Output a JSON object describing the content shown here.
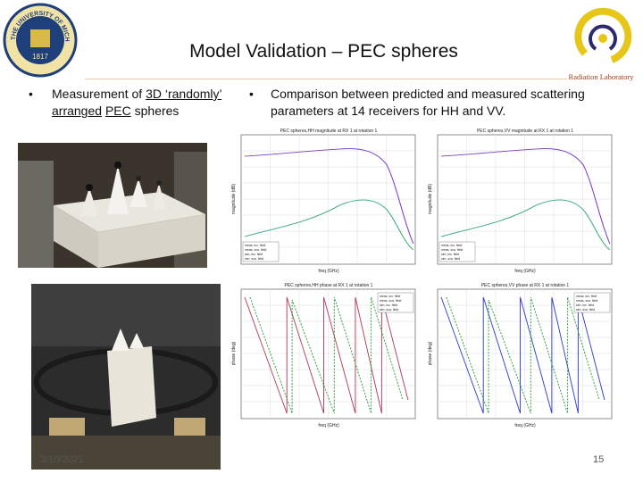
{
  "header": {
    "title": "Model Validation – PEC spheres",
    "logo_left": {
      "text": "THE UNIVERSITY OF MICHIGAN",
      "year": "1817"
    },
    "logo_right": "Radiation Laboratory"
  },
  "bullets": [
    {
      "segments": [
        {
          "text": "Measurement of "
        },
        {
          "text": "3D ‘randomly’",
          "underline": true
        },
        {
          "text": " "
        },
        {
          "text": "arranged",
          "underline": true
        },
        {
          "text": " "
        },
        {
          "text": "PEC",
          "underline": true
        },
        {
          "text": " spheres"
        }
      ]
    },
    {
      "segments": [
        {
          "text": "Comparison between predicted and measured scattering parameters at 14 receivers for HH and VV."
        }
      ]
    }
  ],
  "plots": [
    {
      "title": "PEC spheres,HH magnitude at RX 1 at rotation 1",
      "xlabel": "freq (GHz)",
      "ylabel": "magnitude (dB)",
      "legend": [
        "meas, inc. field",
        "meas, sca. field",
        "sim, inc. field",
        "sim, sca. field"
      ]
    },
    {
      "title": "PEC spheres,VV magnitude at RX 1 at rotation 1",
      "xlabel": "freq (GHz)",
      "ylabel": "magnitude (dB)",
      "legend": [
        "meas, inc. field",
        "meas, sca. field",
        "sim, inc. field",
        "sim, sca. field"
      ]
    },
    {
      "title": "PEC spheres,HH phase at RX 1 at rotation 1",
      "xlabel": "freq (GHz)",
      "ylabel": "phase (deg)",
      "legend": [
        "meas, inc. field",
        "meas, sca. field",
        "sim, inc. field",
        "sim, sca. field"
      ]
    },
    {
      "title": "PEC spheres,VV phase at RX 1 at rotation 1",
      "xlabel": "freq (GHz)",
      "ylabel": "phase (deg)",
      "legend": [
        "meas, inc. field",
        "meas, sca. field",
        "sim, inc. field",
        "sim, sca. field"
      ]
    }
  ],
  "footer": {
    "date": "3/10/2021",
    "page": "15"
  }
}
